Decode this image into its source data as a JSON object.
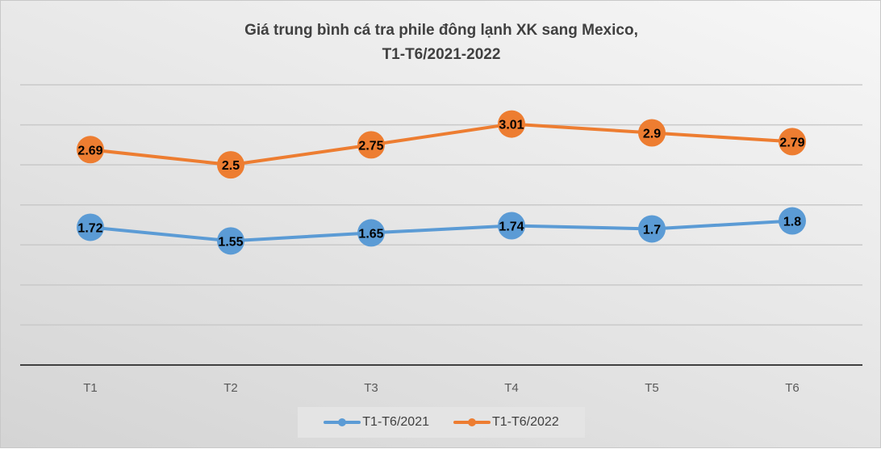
{
  "chart_data": {
    "type": "line",
    "title": "Giá trung bình cá tra phile đông lạnh XK sang Mexico,",
    "subtitle": "T1-T6/2021-2022",
    "categories": [
      "T1",
      "T2",
      "T3",
      "T4",
      "T5",
      "T6"
    ],
    "series": [
      {
        "name": "T1-T6/2021",
        "color": "#5b9bd5",
        "values": [
          1.72,
          1.55,
          1.65,
          1.74,
          1.7,
          1.8
        ]
      },
      {
        "name": "T1-T6/2022",
        "color": "#ed7d31",
        "values": [
          2.69,
          2.5,
          2.75,
          3.01,
          2.9,
          2.79
        ]
      }
    ],
    "ylim": [
      0,
      3.5
    ],
    "grid": true,
    "legend": "bottom",
    "xlabel": "",
    "ylabel": ""
  }
}
